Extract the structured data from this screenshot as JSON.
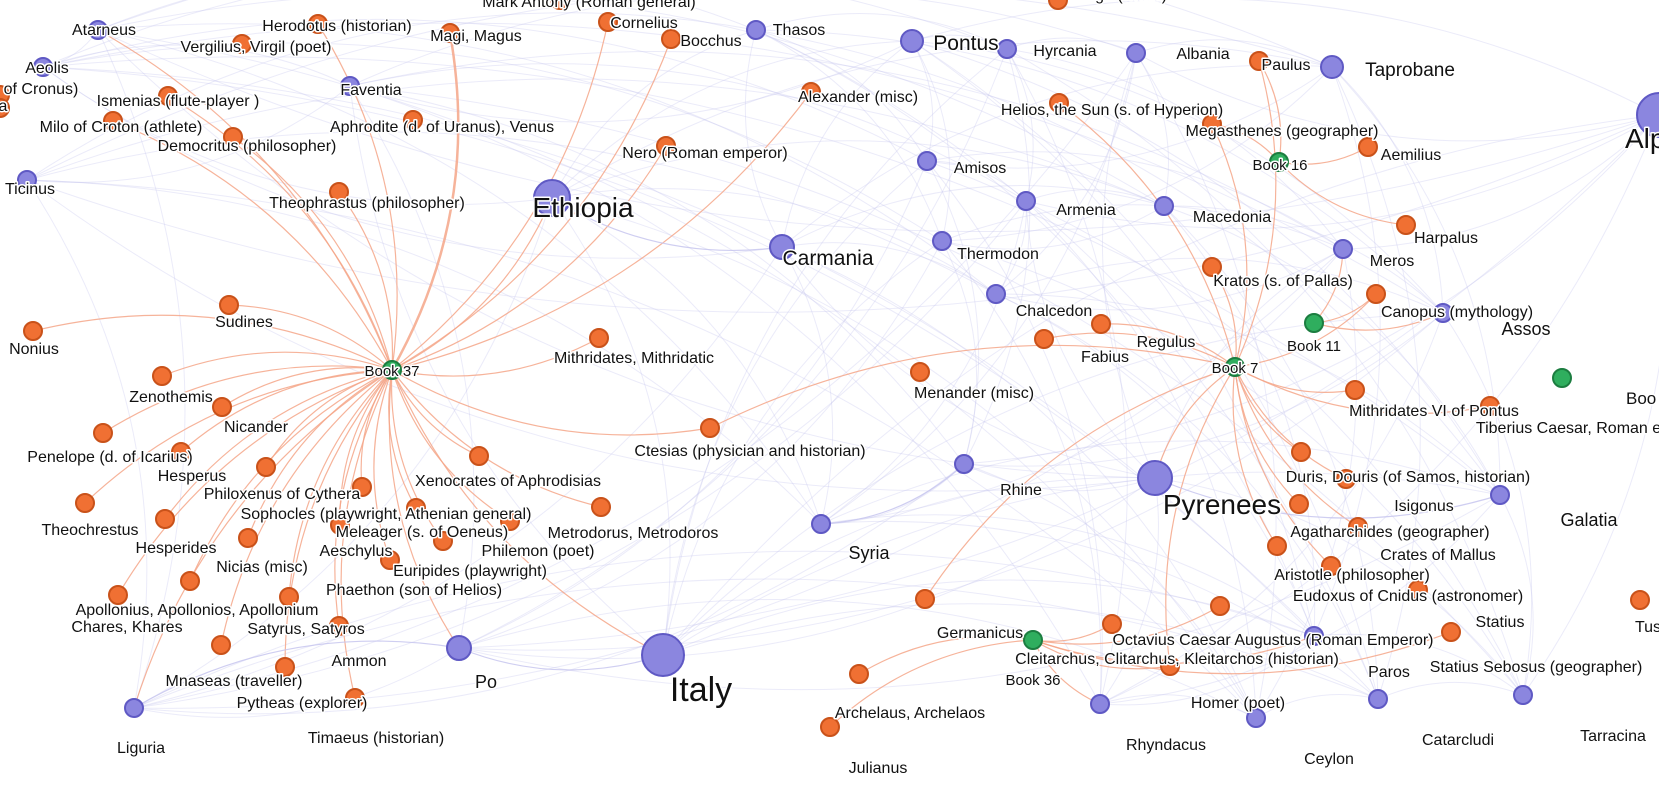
{
  "colors": {
    "place": "#8b86df",
    "place_stroke": "#5f59c4",
    "person": "#f07033",
    "person_stroke": "#c9521a",
    "book": "#2fae5e",
    "book_stroke": "#1c7d40",
    "edge_person": "#f4a688",
    "edge_place": "#c7c6ef"
  },
  "nodes": [
    {
      "id": "book37",
      "type": "book",
      "label": "Book 37"
    },
    {
      "id": "book7",
      "type": "book",
      "label": "Book 7"
    },
    {
      "id": "book16",
      "type": "book",
      "label": "Book 16"
    },
    {
      "id": "book11",
      "type": "book",
      "label": "Book 11"
    },
    {
      "id": "book36",
      "type": "book",
      "label": "Book 36"
    },
    {
      "id": "boo_edge",
      "type": "book",
      "label": "Boo"
    },
    {
      "id": "ethiopia",
      "type": "place",
      "label": "Ethiopia"
    },
    {
      "id": "italy",
      "type": "place",
      "label": "Italy"
    },
    {
      "id": "pyrenees",
      "type": "place",
      "label": "Pyrenees"
    },
    {
      "id": "carmania",
      "type": "place",
      "label": "Carmania"
    },
    {
      "id": "pontus",
      "type": "place",
      "label": "Pontus"
    },
    {
      "id": "alp_edge",
      "type": "place",
      "label": "Alp"
    },
    {
      "id": "atarneus",
      "type": "place",
      "label": "Atarneus"
    },
    {
      "id": "aeolis",
      "type": "place",
      "label": "Aeolis"
    },
    {
      "id": "faventia",
      "type": "place",
      "label": "Faventia"
    },
    {
      "id": "ticinus",
      "type": "place",
      "label": "Ticinus"
    },
    {
      "id": "thasos",
      "type": "place",
      "label": "Thasos"
    },
    {
      "id": "hyrcania",
      "type": "place",
      "label": "Hyrcania"
    },
    {
      "id": "albania",
      "type": "place",
      "label": "Albania"
    },
    {
      "id": "taprobane",
      "type": "place",
      "label": "Taprobane"
    },
    {
      "id": "amisos",
      "type": "place",
      "label": "Amisos"
    },
    {
      "id": "armenia",
      "type": "place",
      "label": "Armenia"
    },
    {
      "id": "macedonia",
      "type": "place",
      "label": "Macedonia"
    },
    {
      "id": "thermodon",
      "type": "place",
      "label": "Thermodon"
    },
    {
      "id": "meros",
      "type": "place",
      "label": "Meros"
    },
    {
      "id": "chalcedon",
      "type": "place",
      "label": "Chalcedon"
    },
    {
      "id": "assos",
      "type": "place",
      "label": "Assos"
    },
    {
      "id": "rhine",
      "type": "place",
      "label": "Rhine"
    },
    {
      "id": "syria",
      "type": "place",
      "label": "Syria"
    },
    {
      "id": "galatia",
      "type": "place",
      "label": "Galatia"
    },
    {
      "id": "po",
      "type": "place",
      "label": "Po"
    },
    {
      "id": "liguria",
      "type": "place",
      "label": "Liguria"
    },
    {
      "id": "paros",
      "type": "place",
      "label": "Paros"
    },
    {
      "id": "rhyndacus",
      "type": "place",
      "label": "Rhyndacus"
    },
    {
      "id": "ceylon",
      "type": "place",
      "label": "Ceylon"
    },
    {
      "id": "catarcludi",
      "type": "place",
      "label": "Catarcludi"
    },
    {
      "id": "tarracina",
      "type": "place",
      "label": "Tarracina"
    },
    {
      "id": "herodotus",
      "type": "person",
      "label": "Herodotus (historian)"
    },
    {
      "id": "markantony",
      "type": "person",
      "label": "Mark Antony (Roman general)"
    },
    {
      "id": "mago",
      "type": "person",
      "label": "Mago (writer)"
    },
    {
      "id": "cornelius",
      "type": "person",
      "label": "Cornelius"
    },
    {
      "id": "bocchus",
      "type": "person",
      "label": "Bocchus"
    },
    {
      "id": "vergilius",
      "type": "person",
      "label": "Vergilius, Virgil (poet)"
    },
    {
      "id": "magi",
      "type": "person",
      "label": "Magi, Magus"
    },
    {
      "id": "cronus",
      "type": "person",
      "label": "of Cronus)"
    },
    {
      "id": "a_edge",
      "type": "person",
      "label": "a"
    },
    {
      "id": "ismenias",
      "type": "person",
      "label": "Ismenias (flute-player )"
    },
    {
      "id": "milo",
      "type": "person",
      "label": "Milo of Croton (athlete)"
    },
    {
      "id": "aphrodite",
      "type": "person",
      "label": "Aphrodite (d. of Uranus), Venus"
    },
    {
      "id": "democritus",
      "type": "person",
      "label": "Democritus (philosopher)"
    },
    {
      "id": "alexander",
      "type": "person",
      "label": "Alexander (misc)"
    },
    {
      "id": "helios",
      "type": "person",
      "label": "Helios, the Sun (s. of Hyperion)"
    },
    {
      "id": "paulus",
      "type": "person",
      "label": "Paulus"
    },
    {
      "id": "megasthenes",
      "type": "person",
      "label": "Megasthenes (geographer)"
    },
    {
      "id": "aemilius",
      "type": "person",
      "label": "Aemilius"
    },
    {
      "id": "nero",
      "type": "person",
      "label": "Nero (Roman emperor)"
    },
    {
      "id": "theophrastus",
      "type": "person",
      "label": "Theophrastus (philosopher)"
    },
    {
      "id": "harpalus",
      "type": "person",
      "label": "Harpalus"
    },
    {
      "id": "kratos",
      "type": "person",
      "label": "Kratos (s. of Pallas)"
    },
    {
      "id": "canopus",
      "type": "person",
      "label": "Canopus (mythology)"
    },
    {
      "id": "sudines",
      "type": "person",
      "label": "Sudines"
    },
    {
      "id": "nonius",
      "type": "person",
      "label": "Nonius"
    },
    {
      "id": "mithridates",
      "type": "person",
      "label": "Mithridates, Mithridatic"
    },
    {
      "id": "regulus",
      "type": "person",
      "label": "Regulus"
    },
    {
      "id": "fabius",
      "type": "person",
      "label": "Fabius"
    },
    {
      "id": "zenothemis",
      "type": "person",
      "label": "Zenothemis"
    },
    {
      "id": "menander",
      "type": "person",
      "label": "Menander (misc)"
    },
    {
      "id": "mithridates6",
      "type": "person",
      "label": "Mithridates VI of Pontus"
    },
    {
      "id": "nicander",
      "type": "person",
      "label": "Nicander"
    },
    {
      "id": "tiberius",
      "type": "person",
      "label": "Tiberius Caesar, Roman en"
    },
    {
      "id": "penelope",
      "type": "person",
      "label": "Penelope (d. of Icarius)"
    },
    {
      "id": "ctesias",
      "type": "person",
      "label": "Ctesias (physician and historian)"
    },
    {
      "id": "hesperus",
      "type": "person",
      "label": "Hesperus"
    },
    {
      "id": "xenocrates",
      "type": "person",
      "label": "Xenocrates of Aphrodisias"
    },
    {
      "id": "duris",
      "type": "person",
      "label": "Duris, Douris (of Samos, historian)"
    },
    {
      "id": "philoxenus",
      "type": "person",
      "label": "Philoxenus of Cythera"
    },
    {
      "id": "isigonus",
      "type": "person",
      "label": "Isigonus"
    },
    {
      "id": "sophocles",
      "type": "person",
      "label": "Sophocles (playwright, Athenian general)"
    },
    {
      "id": "theochrestus",
      "type": "person",
      "label": "Theochrestus"
    },
    {
      "id": "meleager",
      "type": "person",
      "label": "Meleager (s. of Oeneus)"
    },
    {
      "id": "metrodorus",
      "type": "person",
      "label": "Metrodorus, Metrodoros"
    },
    {
      "id": "agatharchides",
      "type": "person",
      "label": "Agatharchides (geographer)"
    },
    {
      "id": "hesperides",
      "type": "person",
      "label": "Hesperides"
    },
    {
      "id": "aeschylus",
      "type": "person",
      "label": "Aeschylus"
    },
    {
      "id": "philemon",
      "type": "person",
      "label": "Philemon (poet)"
    },
    {
      "id": "crates",
      "type": "person",
      "label": "Crates of Mallus"
    },
    {
      "id": "nicias",
      "type": "person",
      "label": "Nicias (misc)"
    },
    {
      "id": "euripides",
      "type": "person",
      "label": "Euripides (playwright)"
    },
    {
      "id": "aristotle",
      "type": "person",
      "label": "Aristotle (philosopher)"
    },
    {
      "id": "phaethon",
      "type": "person",
      "label": "Phaethon (son of Helios)"
    },
    {
      "id": "eudoxus",
      "type": "person",
      "label": "Eudoxus of Cnidus (astronomer)"
    },
    {
      "id": "apollonius",
      "type": "person",
      "label": "Apollonius, Apollonios, Apollonium"
    },
    {
      "id": "chares",
      "type": "person",
      "label": "Chares, Khares"
    },
    {
      "id": "satyrus",
      "type": "person",
      "label": "Satyrus, Satyros"
    },
    {
      "id": "statius",
      "type": "person",
      "label": "Statius"
    },
    {
      "id": "tus_edge",
      "type": "person",
      "label": "Tus"
    },
    {
      "id": "germanicus",
      "type": "person",
      "label": "Germanicus"
    },
    {
      "id": "octavius",
      "type": "person",
      "label": "Octavius Caesar Augustus (Roman Emperor)"
    },
    {
      "id": "ammon",
      "type": "person",
      "label": "Ammon"
    },
    {
      "id": "cleitarchus",
      "type": "person",
      "label": "Cleitarchus, Clitarchus, Kleitarchos (historian)"
    },
    {
      "id": "statiussebosus",
      "type": "person",
      "label": "Statius Sebosus (geographer)"
    },
    {
      "id": "mnaseas",
      "type": "person",
      "label": "Mnaseas (traveller)"
    },
    {
      "id": "pytheas",
      "type": "person",
      "label": "Pytheas (explorer)"
    },
    {
      "id": "homer",
      "type": "person",
      "label": "Homer (poet)"
    },
    {
      "id": "archelaus",
      "type": "person",
      "label": "Archelaus, Archelaos"
    },
    {
      "id": "timaeus",
      "type": "person",
      "label": "Timaeus (historian)"
    },
    {
      "id": "julianus",
      "type": "person",
      "label": "Julianus"
    }
  ],
  "edges": [
    [
      "book37",
      "herodotus"
    ],
    [
      "book37",
      "magi"
    ],
    [
      "book37",
      "cornelius"
    ],
    [
      "book37",
      "bocchus"
    ],
    [
      "book37",
      "theophrastus"
    ],
    [
      "book37",
      "democritus"
    ],
    [
      "book37",
      "sudines"
    ],
    [
      "book37",
      "nonius"
    ],
    [
      "book37",
      "zenothemis"
    ],
    [
      "book37",
      "nicander"
    ],
    [
      "book37",
      "penelope"
    ],
    [
      "book37",
      "hesperus"
    ],
    [
      "book37",
      "philoxenus"
    ],
    [
      "book37",
      "sophocles"
    ],
    [
      "book37",
      "theochrestus"
    ],
    [
      "book37",
      "meleager"
    ],
    [
      "book37",
      "metrodorus"
    ],
    [
      "book37",
      "hesperides"
    ],
    [
      "book37",
      "aeschylus"
    ],
    [
      "book37",
      "philemon"
    ],
    [
      "book37",
      "nicias"
    ],
    [
      "book37",
      "euripides"
    ],
    [
      "book37",
      "phaethon"
    ],
    [
      "book37",
      "apollonius"
    ],
    [
      "book37",
      "chares"
    ],
    [
      "book37",
      "satyrus"
    ],
    [
      "book37",
      "ammon"
    ],
    [
      "book37",
      "mnaseas"
    ],
    [
      "book37",
      "pytheas"
    ],
    [
      "book37",
      "timaeus"
    ],
    [
      "book37",
      "xenocrates"
    ],
    [
      "book37",
      "mithridates"
    ],
    [
      "book37",
      "ctesias"
    ],
    [
      "book37",
      "nero"
    ],
    [
      "book37",
      "alexander"
    ],
    [
      "book37",
      "ismenias"
    ],
    [
      "book37",
      "milo"
    ],
    [
      "book37",
      "ethiopia"
    ],
    [
      "book37",
      "po"
    ],
    [
      "book37",
      "italy"
    ],
    [
      "book37",
      "liguria"
    ],
    [
      "book37",
      "atarneus"
    ],
    [
      "book7",
      "megasthenes"
    ],
    [
      "book7",
      "paulus"
    ],
    [
      "book7",
      "kratos"
    ],
    [
      "book7",
      "regulus"
    ],
    [
      "book7",
      "fabius"
    ],
    [
      "book7",
      "ctesias"
    ],
    [
      "book7",
      "mithridates6"
    ],
    [
      "book7",
      "duris"
    ],
    [
      "book7",
      "isigonus"
    ],
    [
      "book7",
      "agatharchides"
    ],
    [
      "book7",
      "crates"
    ],
    [
      "book7",
      "aristotle"
    ],
    [
      "book7",
      "eudoxus"
    ],
    [
      "book7",
      "pyrenees"
    ],
    [
      "book7",
      "tiberius"
    ],
    [
      "book7",
      "canopus"
    ],
    [
      "book7",
      "helios"
    ],
    [
      "book7",
      "homer"
    ],
    [
      "book7",
      "germanicus"
    ],
    [
      "book16",
      "megasthenes"
    ],
    [
      "book16",
      "paulus"
    ],
    [
      "book16",
      "aemilius"
    ],
    [
      "book16",
      "harpalus"
    ],
    [
      "book11",
      "canopus"
    ],
    [
      "book11",
      "assos"
    ],
    [
      "book11",
      "meros"
    ],
    [
      "book36",
      "octavius"
    ],
    [
      "book36",
      "cleitarchus"
    ],
    [
      "book36",
      "homer"
    ],
    [
      "book36",
      "statiussebosus"
    ],
    [
      "book36",
      "rhyndacus"
    ],
    [
      "book36",
      "paros"
    ],
    [
      "book36",
      "archelaus"
    ],
    [
      "book36",
      "julianus"
    ],
    [
      "po",
      "italy"
    ],
    [
      "po",
      "liguria"
    ],
    [
      "ethiopia",
      "carmania"
    ],
    [
      "pyrenees",
      "galatia"
    ],
    [
      "syria",
      "rhine"
    ]
  ]
}
